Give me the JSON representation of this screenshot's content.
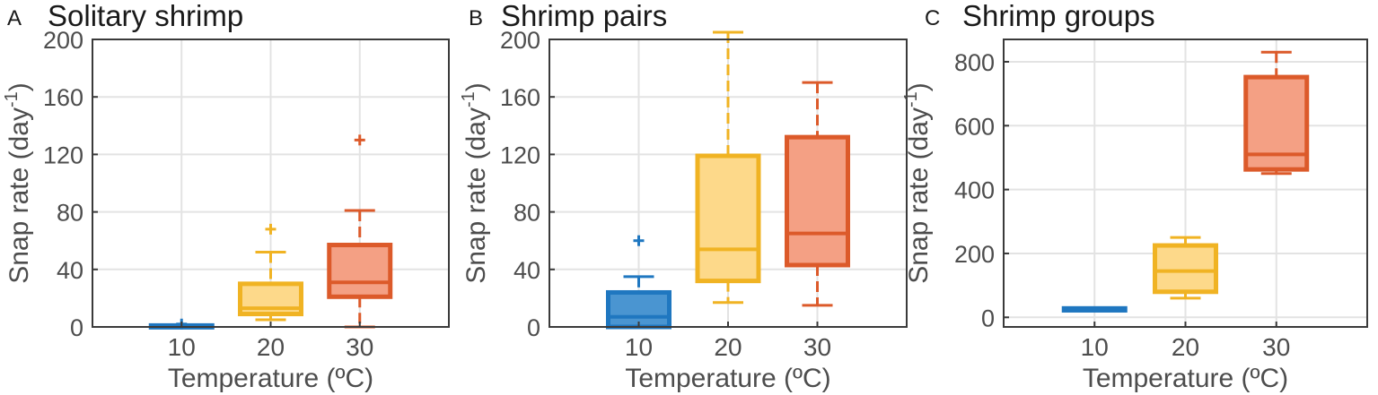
{
  "chart_data": [
    {
      "type": "box",
      "panel_letter": "A",
      "title": "Solitary shrimp",
      "xlabel": "Temperature (ºC)",
      "ylabel_main": "Snap rate (day",
      "ylabel_sup": "-1",
      "ylabel_close": ")",
      "categories": [
        "10",
        "20",
        "30"
      ],
      "ylim": [
        0,
        200
      ],
      "yticks": [
        0,
        40,
        80,
        120,
        160,
        200
      ],
      "grid": true,
      "boxes": [
        {
          "category": "10",
          "whisker_low": 0,
          "q1": 0,
          "median": 0.5,
          "q3": 1,
          "whisker_high": 1,
          "outliers": [
            2
          ],
          "color": "#1f77c0",
          "fill": "#4a95d1"
        },
        {
          "category": "20",
          "whisker_low": 5,
          "q1": 9,
          "median": 13,
          "q3": 30,
          "whisker_high": 52,
          "outliers": [
            68
          ],
          "color": "#f0b323",
          "fill": "#fdd98a"
        },
        {
          "category": "30",
          "whisker_low": 0,
          "q1": 21,
          "median": 31,
          "q3": 57,
          "whisker_high": 81,
          "outliers": [
            130
          ],
          "color": "#dc5a2a",
          "fill": "#f4a084"
        }
      ]
    },
    {
      "type": "box",
      "panel_letter": "B",
      "title": "Shrimp pairs",
      "xlabel": "Temperature (ºC)",
      "ylabel_main": "Snap rate (day",
      "ylabel_sup": "-1",
      "ylabel_close": ")",
      "categories": [
        "10",
        "20",
        "30"
      ],
      "ylim": [
        0,
        200
      ],
      "yticks": [
        0,
        40,
        80,
        120,
        160,
        200
      ],
      "grid": true,
      "boxes": [
        {
          "category": "10",
          "whisker_low": 0,
          "q1": 0,
          "median": 7,
          "q3": 24,
          "whisker_high": 35,
          "outliers": [
            60
          ],
          "color": "#1f77c0",
          "fill": "#4a95d1"
        },
        {
          "category": "20",
          "whisker_low": 17,
          "q1": 32,
          "median": 54,
          "q3": 119,
          "whisker_high": 205,
          "outliers": [],
          "color": "#f0b323",
          "fill": "#fdd98a"
        },
        {
          "category": "30",
          "whisker_low": 15,
          "q1": 43,
          "median": 65,
          "q3": 132,
          "whisker_high": 170,
          "outliers": [],
          "color": "#dc5a2a",
          "fill": "#f4a084"
        }
      ]
    },
    {
      "type": "box",
      "panel_letter": "C",
      "title": "Shrimp groups",
      "xlabel": "Temperature (ºC)",
      "ylabel_main": "Snap rate (day",
      "ylabel_sup": "-1",
      "ylabel_close": ")",
      "categories": [
        "10",
        "20",
        "30"
      ],
      "ylim": [
        -30,
        870
      ],
      "yticks": [
        0,
        200,
        400,
        600,
        800
      ],
      "grid": true,
      "boxes": [
        {
          "category": "10",
          "whisker_low": 20,
          "q1": 22,
          "median": 24,
          "q3": 28,
          "whisker_high": 30,
          "outliers": [],
          "color": "#1f77c0",
          "fill": "#4a95d1"
        },
        {
          "category": "20",
          "whisker_low": 60,
          "q1": 80,
          "median": 145,
          "q3": 225,
          "whisker_high": 250,
          "outliers": [],
          "color": "#f0b323",
          "fill": "#fdd98a"
        },
        {
          "category": "30",
          "whisker_low": 450,
          "q1": 463,
          "median": 510,
          "q3": 752,
          "whisker_high": 830,
          "outliers": [],
          "color": "#dc5a2a",
          "fill": "#f4a084"
        }
      ]
    }
  ]
}
